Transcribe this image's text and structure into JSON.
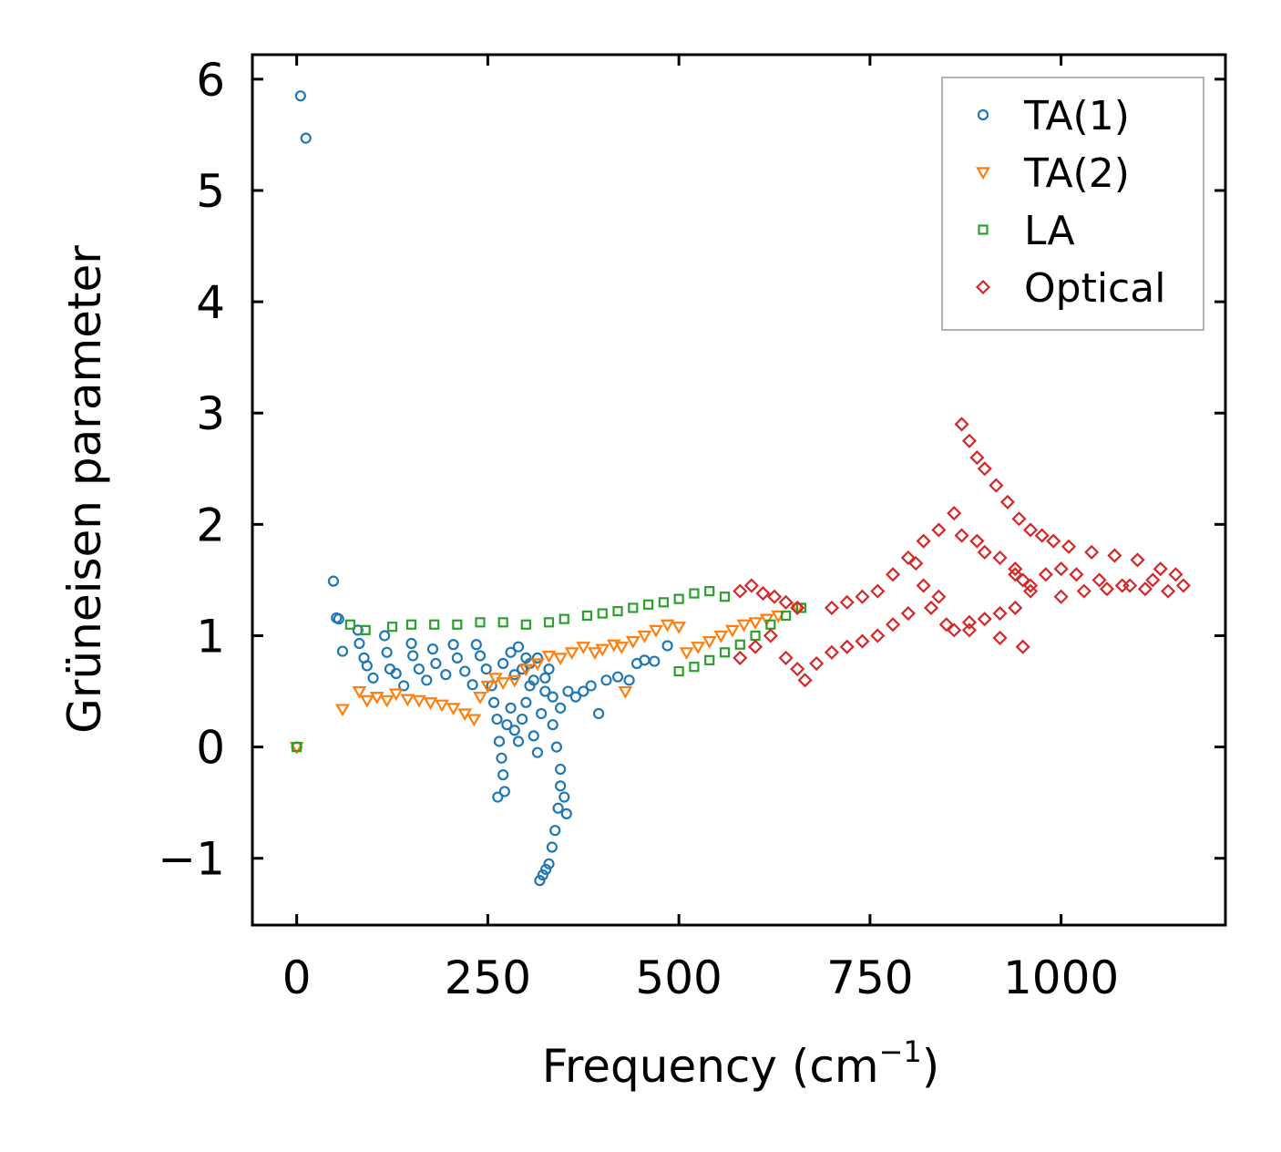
{
  "chart_data": {
    "type": "scatter",
    "title": "",
    "xlabel": "Frequency (cm",
    "xlabel_sup": "−1",
    "xlabel_suffix": ")",
    "ylabel": "Grüneisen parameter",
    "xlim": [
      -58,
      1215
    ],
    "ylim": [
      -1.6,
      6.22
    ],
    "xticks": [
      0,
      250,
      500,
      750,
      1000
    ],
    "xtick_labels": [
      "0",
      "250",
      "500",
      "750",
      "1000"
    ],
    "yticks": [
      -1,
      0,
      1,
      2,
      3,
      4,
      5,
      6
    ],
    "ytick_labels": [
      "−1",
      "0",
      "1",
      "2",
      "3",
      "4",
      "5",
      "6"
    ],
    "grid": false,
    "legend_position": "top-right",
    "series": [
      {
        "name": "TA(1)",
        "marker": "circle",
        "color": "#1f77b4",
        "points": [
          [
            0,
            0
          ],
          [
            5,
            5.85
          ],
          [
            12,
            5.47
          ],
          [
            48,
            1.49
          ],
          [
            52,
            1.16
          ],
          [
            55,
            1.15
          ],
          [
            60,
            0.86
          ],
          [
            80,
            1.05
          ],
          [
            82,
            0.93
          ],
          [
            88,
            0.8
          ],
          [
            92,
            0.73
          ],
          [
            100,
            0.62
          ],
          [
            115,
            1.0
          ],
          [
            118,
            0.85
          ],
          [
            122,
            0.7
          ],
          [
            130,
            0.66
          ],
          [
            140,
            0.55
          ],
          [
            150,
            0.93
          ],
          [
            152,
            0.82
          ],
          [
            160,
            0.7
          ],
          [
            170,
            0.6
          ],
          [
            178,
            0.88
          ],
          [
            182,
            0.75
          ],
          [
            195,
            0.65
          ],
          [
            205,
            0.92
          ],
          [
            210,
            0.8
          ],
          [
            220,
            0.68
          ],
          [
            230,
            0.56
          ],
          [
            235,
            0.92
          ],
          [
            240,
            0.82
          ],
          [
            248,
            0.7
          ],
          [
            255,
            0.55
          ],
          [
            258,
            0.4
          ],
          [
            262,
            0.25
          ],
          [
            265,
            0.05
          ],
          [
            268,
            -0.1
          ],
          [
            270,
            -0.25
          ],
          [
            272,
            -0.4
          ],
          [
            263,
            -0.45
          ],
          [
            275,
            0.2
          ],
          [
            280,
            0.35
          ],
          [
            285,
            0.15
          ],
          [
            290,
            0.05
          ],
          [
            295,
            0.25
          ],
          [
            300,
            0.4
          ],
          [
            305,
            0.55
          ],
          [
            310,
            0.1
          ],
          [
            315,
            -0.05
          ],
          [
            320,
            0.3
          ],
          [
            325,
            0.5
          ],
          [
            330,
            0.7
          ],
          [
            335,
            0.2
          ],
          [
            340,
            0.0
          ],
          [
            345,
            -0.2
          ],
          [
            350,
            -0.45
          ],
          [
            353,
            -0.6
          ],
          [
            345,
            -0.35
          ],
          [
            342,
            -0.55
          ],
          [
            338,
            -0.75
          ],
          [
            334,
            -0.9
          ],
          [
            330,
            -1.05
          ],
          [
            326,
            -1.1
          ],
          [
            322,
            -1.15
          ],
          [
            318,
            -1.2
          ],
          [
            310,
            0.6
          ],
          [
            300,
            0.8
          ],
          [
            290,
            0.9
          ],
          [
            280,
            0.85
          ],
          [
            270,
            0.75
          ],
          [
            285,
            0.65
          ],
          [
            295,
            0.7
          ],
          [
            305,
            0.75
          ],
          [
            315,
            0.8
          ],
          [
            325,
            0.62
          ],
          [
            335,
            0.45
          ],
          [
            345,
            0.35
          ],
          [
            355,
            0.5
          ],
          [
            365,
            0.45
          ],
          [
            375,
            0.5
          ],
          [
            385,
            0.55
          ],
          [
            395,
            0.3
          ],
          [
            405,
            0.6
          ],
          [
            420,
            0.63
          ],
          [
            435,
            0.6
          ],
          [
            445,
            0.75
          ],
          [
            455,
            0.78
          ],
          [
            468,
            0.77
          ],
          [
            485,
            0.91
          ]
        ]
      },
      {
        "name": "TA(2)",
        "marker": "triangle",
        "color": "#ff7f0e",
        "points": [
          [
            0,
            0
          ],
          [
            60,
            0.34
          ],
          [
            82,
            0.5
          ],
          [
            92,
            0.42
          ],
          [
            105,
            0.45
          ],
          [
            118,
            0.42
          ],
          [
            130,
            0.48
          ],
          [
            145,
            0.43
          ],
          [
            160,
            0.42
          ],
          [
            175,
            0.4
          ],
          [
            190,
            0.38
          ],
          [
            205,
            0.35
          ],
          [
            220,
            0.3
          ],
          [
            232,
            0.25
          ],
          [
            240,
            0.45
          ],
          [
            250,
            0.55
          ],
          [
            260,
            0.62
          ],
          [
            270,
            0.58
          ],
          [
            285,
            0.6
          ],
          [
            300,
            0.7
          ],
          [
            315,
            0.75
          ],
          [
            330,
            0.82
          ],
          [
            345,
            0.8
          ],
          [
            360,
            0.85
          ],
          [
            375,
            0.9
          ],
          [
            390,
            0.85
          ],
          [
            400,
            0.88
          ],
          [
            415,
            0.92
          ],
          [
            425,
            0.9
          ],
          [
            430,
            0.5
          ],
          [
            440,
            0.95
          ],
          [
            455,
            1.0
          ],
          [
            470,
            1.05
          ],
          [
            485,
            1.1
          ],
          [
            500,
            1.08
          ],
          [
            510,
            0.85
          ],
          [
            525,
            0.9
          ],
          [
            540,
            0.95
          ],
          [
            555,
            1.0
          ],
          [
            570,
            1.05
          ],
          [
            585,
            1.1
          ],
          [
            600,
            1.12
          ],
          [
            615,
            1.15
          ],
          [
            630,
            1.18
          ],
          [
            655,
            1.25
          ]
        ]
      },
      {
        "name": "LA",
        "marker": "square",
        "color": "#2ca02c",
        "points": [
          [
            0,
            0
          ],
          [
            70,
            1.1
          ],
          [
            90,
            1.05
          ],
          [
            125,
            1.08
          ],
          [
            150,
            1.1
          ],
          [
            180,
            1.1
          ],
          [
            210,
            1.1
          ],
          [
            240,
            1.12
          ],
          [
            270,
            1.12
          ],
          [
            300,
            1.1
          ],
          [
            330,
            1.12
          ],
          [
            350,
            1.15
          ],
          [
            380,
            1.18
          ],
          [
            400,
            1.2
          ],
          [
            420,
            1.22
          ],
          [
            440,
            1.25
          ],
          [
            460,
            1.28
          ],
          [
            480,
            1.3
          ],
          [
            500,
            1.33
          ],
          [
            520,
            1.38
          ],
          [
            540,
            1.4
          ],
          [
            560,
            1.35
          ],
          [
            500,
            0.68
          ],
          [
            520,
            0.72
          ],
          [
            540,
            0.78
          ],
          [
            560,
            0.85
          ],
          [
            580,
            0.92
          ],
          [
            600,
            1.0
          ],
          [
            620,
            1.1
          ],
          [
            640,
            1.18
          ],
          [
            660,
            1.25
          ]
        ]
      },
      {
        "name": "Optical",
        "marker": "diamond",
        "color": "#d62728",
        "points": [
          [
            580,
            1.4
          ],
          [
            595,
            1.45
          ],
          [
            610,
            1.38
          ],
          [
            625,
            1.35
          ],
          [
            640,
            1.3
          ],
          [
            655,
            1.25
          ],
          [
            580,
            0.8
          ],
          [
            600,
            0.9
          ],
          [
            620,
            1.0
          ],
          [
            640,
            0.8
          ],
          [
            655,
            0.7
          ],
          [
            665,
            0.6
          ],
          [
            680,
            0.75
          ],
          [
            700,
            0.85
          ],
          [
            720,
            0.9
          ],
          [
            740,
            0.95
          ],
          [
            760,
            1.0
          ],
          [
            780,
            1.1
          ],
          [
            800,
            1.2
          ],
          [
            700,
            1.25
          ],
          [
            720,
            1.3
          ],
          [
            740,
            1.35
          ],
          [
            760,
            1.4
          ],
          [
            780,
            1.55
          ],
          [
            800,
            1.7
          ],
          [
            820,
            1.85
          ],
          [
            840,
            1.95
          ],
          [
            860,
            2.1
          ],
          [
            870,
            2.9
          ],
          [
            880,
            2.75
          ],
          [
            890,
            2.6
          ],
          [
            900,
            2.5
          ],
          [
            915,
            2.35
          ],
          [
            930,
            2.2
          ],
          [
            945,
            2.05
          ],
          [
            960,
            1.95
          ],
          [
            975,
            1.9
          ],
          [
            990,
            1.85
          ],
          [
            1010,
            1.8
          ],
          [
            1040,
            1.75
          ],
          [
            1070,
            1.72
          ],
          [
            1100,
            1.68
          ],
          [
            1130,
            1.6
          ],
          [
            1160,
            1.45
          ],
          [
            1140,
            1.4
          ],
          [
            1110,
            1.42
          ],
          [
            1080,
            1.45
          ],
          [
            1050,
            1.5
          ],
          [
            1020,
            1.55
          ],
          [
            1000,
            1.6
          ],
          [
            980,
            1.55
          ],
          [
            960,
            1.4
          ],
          [
            940,
            1.25
          ],
          [
            920,
            1.2
          ],
          [
            900,
            1.15
          ],
          [
            880,
            1.12
          ],
          [
            860,
            1.05
          ],
          [
            850,
            1.1
          ],
          [
            830,
            1.25
          ],
          [
            820,
            1.45
          ],
          [
            810,
            1.65
          ],
          [
            840,
            1.35
          ],
          [
            880,
            1.05
          ],
          [
            920,
            0.98
          ],
          [
            950,
            0.9
          ],
          [
            870,
            1.9
          ],
          [
            890,
            1.85
          ],
          [
            900,
            1.75
          ],
          [
            920,
            1.7
          ],
          [
            940,
            1.6
          ],
          [
            950,
            1.5
          ],
          [
            960,
            1.45
          ],
          [
            940,
            1.55
          ],
          [
            1000,
            1.35
          ],
          [
            1030,
            1.4
          ],
          [
            1060,
            1.42
          ],
          [
            1090,
            1.45
          ],
          [
            1120,
            1.5
          ],
          [
            1150,
            1.55
          ]
        ]
      }
    ]
  }
}
